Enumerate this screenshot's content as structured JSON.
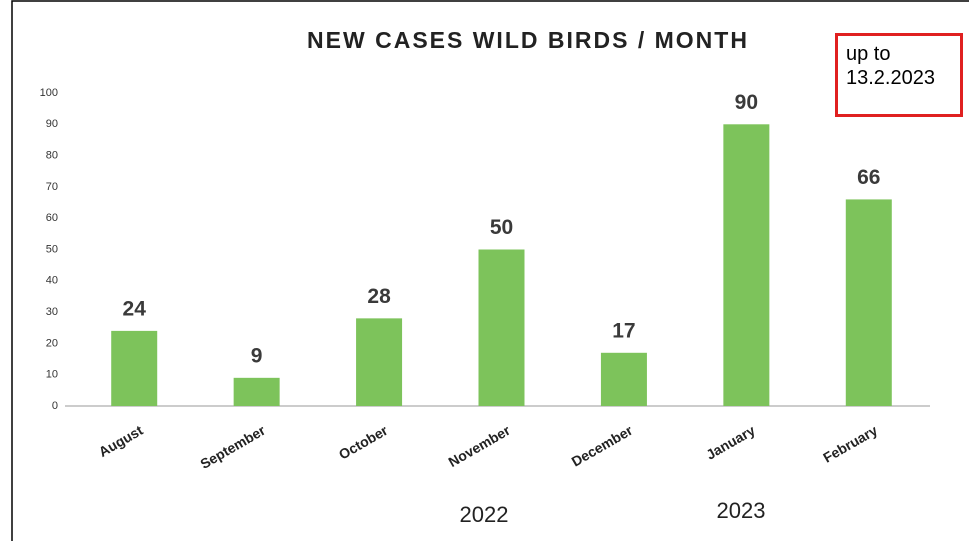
{
  "chart_data": {
    "type": "bar",
    "title": "NEW CASES WILD BIRDS / MONTH",
    "categories": [
      "August",
      "September",
      "October",
      "November",
      "December",
      "January",
      "February"
    ],
    "values": [
      24,
      9,
      28,
      50,
      17,
      90,
      66
    ],
    "color": "#7dc35b",
    "ylim": [
      0,
      100
    ],
    "yticks": [
      0,
      10,
      20,
      30,
      40,
      50,
      60,
      70,
      80,
      90,
      100
    ],
    "grid": false,
    "annotation": "up to 13.2.2023",
    "group_labels": [
      "2022",
      "2023"
    ]
  }
}
